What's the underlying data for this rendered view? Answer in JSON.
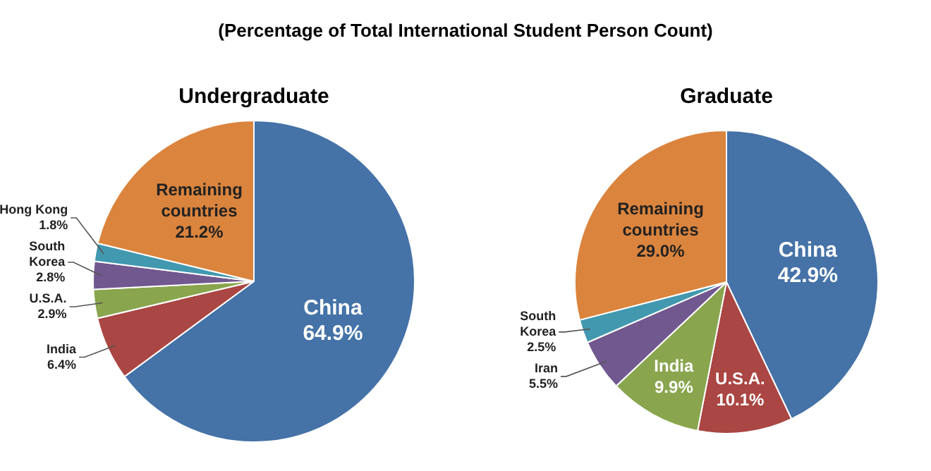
{
  "chart_data": [
    {
      "type": "pie",
      "subtitle": "(Percentage of Total International Student Person Count)",
      "title": "Undergraduate",
      "categories": [
        "China",
        "India",
        "U.S.A.",
        "South Korea",
        "Hong Kong",
        "Remaining countries"
      ],
      "values": [
        64.9,
        6.4,
        2.9,
        2.8,
        1.8,
        21.2
      ],
      "colors": [
        "#4572a7",
        "#aa4643",
        "#89a54e",
        "#71588f",
        "#4198af",
        "#db843d"
      ],
      "value_labels": [
        "64.9%",
        "6.4%",
        "2.9%",
        "2.8%",
        "1.8%",
        "21.2%"
      ],
      "legend": false
    },
    {
      "type": "pie",
      "title": "Graduate",
      "categories": [
        "China",
        "U.S.A.",
        "India",
        "Iran",
        "South Korea",
        "Remaining countries"
      ],
      "values": [
        42.9,
        10.1,
        9.9,
        5.5,
        2.5,
        29.0
      ],
      "colors": [
        "#4572a7",
        "#aa4643",
        "#89a54e",
        "#71588f",
        "#4198af",
        "#db843d"
      ],
      "value_labels": [
        "42.9%",
        "10.1%",
        "9.9%",
        "5.5%",
        "2.5%",
        "29.0%"
      ],
      "legend": false
    }
  ]
}
